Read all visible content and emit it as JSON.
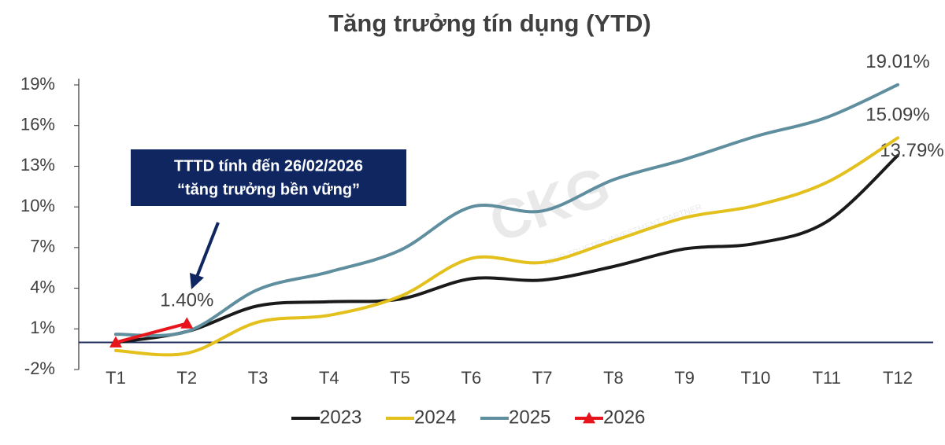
{
  "chart_data": {
    "type": "line",
    "title": "Tăng trưởng tín dụng (YTD)",
    "categories": [
      "T1",
      "T2",
      "T3",
      "T4",
      "T5",
      "T6",
      "T7",
      "T8",
      "T9",
      "T10",
      "T11",
      "T12"
    ],
    "series": [
      {
        "name": "2023",
        "color": "#1a1a1a",
        "values": [
          0,
          0.8,
          2.7,
          3.0,
          3.2,
          4.7,
          4.6,
          5.6,
          6.9,
          7.3,
          8.9,
          13.79
        ],
        "value_labels": [
          null,
          null,
          null,
          null,
          null,
          null,
          null,
          null,
          null,
          null,
          null,
          "13.79%"
        ]
      },
      {
        "name": "2024",
        "color": "#e3c01c",
        "values": [
          -0.6,
          -0.8,
          1.5,
          2.0,
          3.4,
          6.2,
          5.9,
          7.5,
          9.2,
          10.1,
          11.8,
          15.09
        ],
        "value_labels": [
          null,
          null,
          null,
          null,
          null,
          null,
          null,
          null,
          null,
          null,
          null,
          "15.09%"
        ]
      },
      {
        "name": "2025",
        "color": "#5f8e9e",
        "values": [
          0.6,
          0.8,
          3.9,
          5.2,
          6.8,
          10.0,
          9.7,
          12.0,
          13.5,
          15.2,
          16.6,
          19.01
        ],
        "value_labels": [
          null,
          null,
          null,
          null,
          null,
          null,
          null,
          null,
          null,
          null,
          null,
          "19.01%"
        ]
      },
      {
        "name": "2026",
        "color": "#e8141b",
        "marker": "triangle",
        "values": [
          0,
          1.4,
          null,
          null,
          null,
          null,
          null,
          null,
          null,
          null,
          null,
          null
        ],
        "value_labels": [
          null,
          "1.40%",
          null,
          null,
          null,
          null,
          null,
          null,
          null,
          null,
          null,
          null
        ]
      }
    ],
    "ylim": [
      -2,
      19
    ],
    "yticks": [
      {
        "value": -2,
        "label": "-2%"
      },
      {
        "value": 1,
        "label": "1%"
      },
      {
        "value": 4,
        "label": "4%"
      },
      {
        "value": 7,
        "label": "7%"
      },
      {
        "value": 10,
        "label": "10%"
      },
      {
        "value": 13,
        "label": "13%"
      },
      {
        "value": 16,
        "label": "16%"
      },
      {
        "value": 19,
        "label": "19%"
      }
    ],
    "grid": false,
    "legend": "bottom",
    "annotation": [
      "TTTD tính đến 26/02/2026",
      "“tăng trưởng bền vững”"
    ],
    "watermark": [
      "CKG",
      "YOUR TRUSTED INVESTMENT PARTNER"
    ]
  }
}
